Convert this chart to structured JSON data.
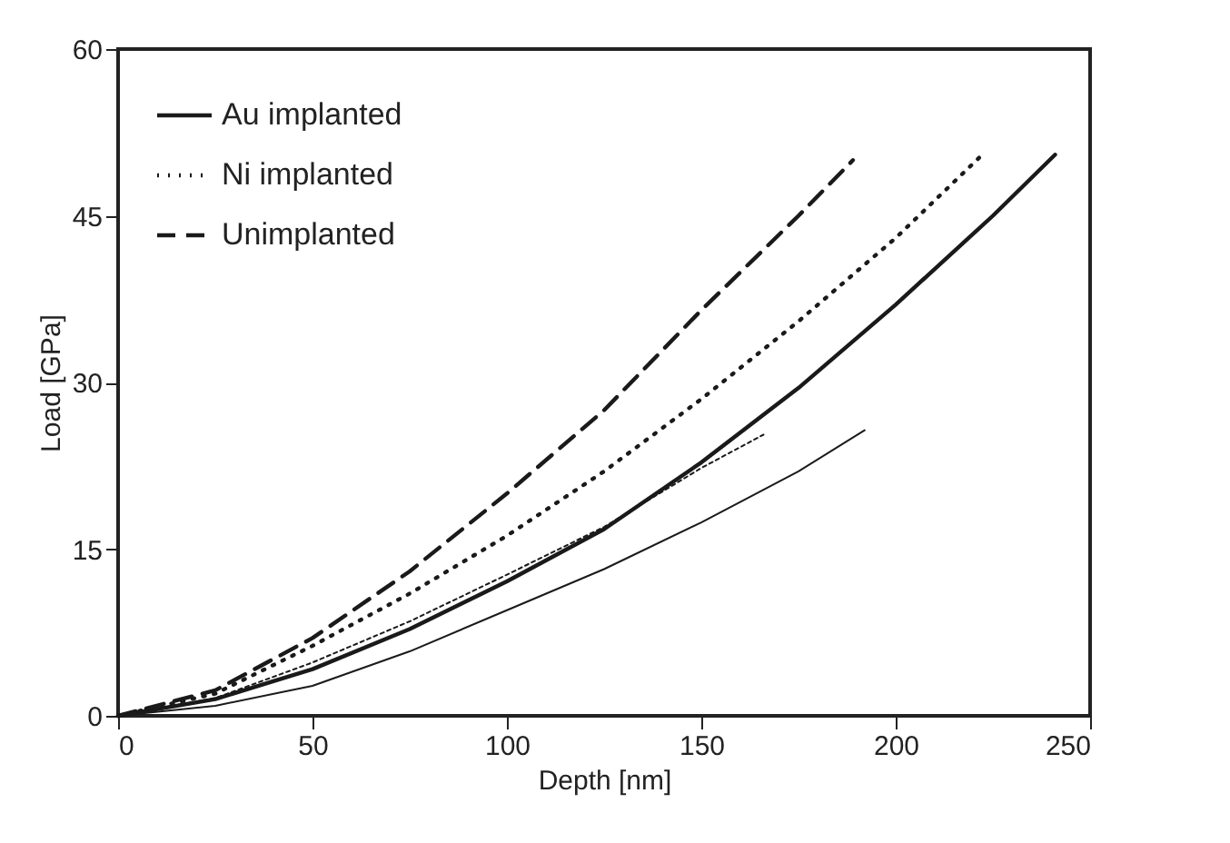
{
  "chart_data": {
    "type": "line",
    "xlabel": "Depth [nm]",
    "ylabel": "Load [GPa]",
    "xlim": [
      0,
      250
    ],
    "xticks": [
      0,
      50,
      100,
      150,
      200,
      250
    ],
    "ylim": [
      0,
      60
    ],
    "yticks": [
      0,
      15,
      30,
      45,
      60
    ],
    "grid": false,
    "legend": "top left",
    "marker": "none",
    "series": [
      {
        "name": "Au implanted",
        "color": "#1a1a1a",
        "line_style": "solid",
        "x": [
          0,
          25,
          50,
          75,
          100,
          125,
          150,
          175,
          200,
          225,
          241
        ],
        "values": [
          0,
          1.5,
          4.2,
          7.8,
          12.1,
          16.8,
          22.8,
          29.5,
          37,
          45,
          50.5
        ]
      },
      {
        "name": "Ni implanted",
        "color": "#1a1a1a",
        "line_style": "dotted",
        "x": [
          0,
          25,
          50,
          75,
          100,
          125,
          150,
          175,
          200,
          222
        ],
        "values": [
          0,
          2,
          6.3,
          11,
          16.2,
          22,
          28.5,
          35.5,
          43,
          50.4
        ]
      },
      {
        "name": "Unimplanted",
        "color": "#1a1a1a",
        "line_style": "dashed",
        "x": [
          0,
          25,
          50,
          75,
          100,
          125,
          150,
          175,
          189
        ],
        "values": [
          0,
          2.3,
          7,
          13,
          20,
          27.5,
          36.5,
          45,
          50
        ]
      },
      {
        "color": "#1a1a1a",
        "line_style": "dotted",
        "x": [
          0,
          25,
          50,
          75,
          100,
          125,
          150,
          166
        ],
        "values": [
          0,
          1.6,
          4.8,
          8.5,
          12.7,
          17,
          22.3,
          25.3
        ]
      },
      {
        "color": "#1a1a1a",
        "line_style": "solid",
        "x": [
          0,
          25,
          50,
          75,
          100,
          125,
          150,
          175,
          192
        ],
        "values": [
          0,
          0.9,
          2.7,
          5.8,
          9.5,
          13.2,
          17.4,
          22,
          25.7
        ]
      }
    ]
  }
}
